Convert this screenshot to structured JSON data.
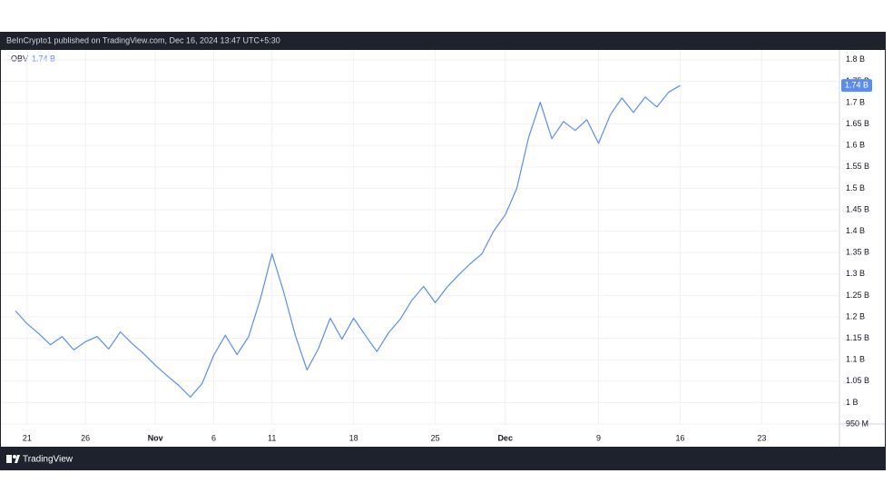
{
  "header": {
    "published": "BeInCrypto1 published on TradingView.com, Dec 16, 2024 13:47 UTC+5:30"
  },
  "footer": {
    "brand": "TradingView"
  },
  "chart_data": {
    "type": "line",
    "categories": [
      null,
      "21",
      null,
      null,
      null,
      null,
      "26",
      null,
      null,
      null,
      null,
      null,
      "Nov",
      null,
      null,
      null,
      null,
      "6",
      null,
      null,
      null,
      null,
      "11",
      null,
      null,
      null,
      null,
      null,
      null,
      "18",
      null,
      null,
      null,
      null,
      null,
      null,
      "25",
      null,
      null,
      null,
      null,
      null,
      "Dec",
      null,
      null,
      null,
      null,
      null,
      null,
      null,
      "9",
      null,
      null,
      null,
      null,
      null,
      null,
      "16",
      null,
      null,
      null,
      null,
      null,
      null,
      "23"
    ],
    "series": [
      {
        "name": "OBV",
        "color": "#5b8def",
        "values": [
          1.214,
          1.184,
          1.161,
          1.135,
          1.154,
          1.123,
          1.142,
          1.154,
          1.125,
          1.165,
          1.138,
          1.114,
          1.087,
          1.063,
          1.04,
          1.013,
          1.044,
          1.11,
          1.157,
          1.112,
          1.154,
          1.241,
          1.347,
          1.258,
          1.157,
          1.076,
          1.127,
          1.197,
          1.148,
          1.197,
          1.157,
          1.119,
          1.163,
          1.195,
          1.239,
          1.271,
          1.233,
          1.269,
          1.298,
          1.324,
          1.347,
          1.4,
          1.438,
          1.5,
          1.618,
          1.701,
          1.616,
          1.656,
          1.635,
          1.66,
          1.605,
          1.671,
          1.711,
          1.677,
          1.713,
          1.69,
          1.724,
          1.74,
          null,
          null,
          null,
          null,
          null,
          null,
          null
        ],
        "value_labels": [
          null,
          null,
          null,
          null,
          null,
          null,
          null,
          null,
          null,
          null,
          null,
          null,
          null,
          null,
          null,
          null,
          null,
          null,
          null,
          null,
          null,
          null,
          null,
          null,
          null,
          null,
          null,
          null,
          null,
          null,
          null,
          null,
          null,
          null,
          null,
          null,
          null,
          null,
          null,
          null,
          null,
          null,
          null,
          null,
          null,
          null,
          null,
          null,
          null,
          null,
          null,
          null,
          null,
          null,
          null,
          null,
          null,
          "1.74 B",
          null,
          null,
          null,
          null,
          null,
          null,
          null
        ]
      }
    ],
    "ylim": [
      0.95,
      1.823
    ],
    "yticks": [
      {
        "value": 0.95,
        "label": "950 M"
      },
      {
        "value": 1,
        "label": "1 B"
      },
      {
        "value": 1.05,
        "label": "1.05 B"
      },
      {
        "value": 1.1,
        "label": "1.1 B"
      },
      {
        "value": 1.15,
        "label": "1.15 B"
      },
      {
        "value": 1.2,
        "label": "1.2 B"
      },
      {
        "value": 1.25,
        "label": "1.25 B"
      },
      {
        "value": 1.3,
        "label": "1.3 B"
      },
      {
        "value": 1.35,
        "label": "1.35 B"
      },
      {
        "value": 1.4,
        "label": "1.4 B"
      },
      {
        "value": 1.45,
        "label": "1.45 B"
      },
      {
        "value": 1.5,
        "label": "1.5 B"
      },
      {
        "value": 1.55,
        "label": "1.55 B"
      },
      {
        "value": 1.6,
        "label": "1.6 B"
      },
      {
        "value": 1.65,
        "label": "1.65 B"
      },
      {
        "value": 1.7,
        "label": "1.7 B"
      },
      {
        "value": 1.75,
        "label": "1.75 B"
      },
      {
        "value": 1.8,
        "label": "1.8 B"
      }
    ],
    "grid": true
  }
}
